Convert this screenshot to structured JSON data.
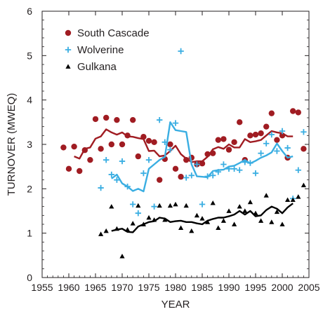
{
  "chart_data": {
    "type": "scatter",
    "xlabel": "YEAR",
    "ylabel": "TURNOVER (MWEQ)",
    "xlim": [
      1955,
      2005
    ],
    "ylim": [
      0,
      6
    ],
    "xticks": [
      "1955",
      "1960",
      "1965",
      "1970",
      "1975",
      "1980",
      "1985",
      "1990",
      "1995",
      "2000",
      "2005"
    ],
    "yticks": [
      "0",
      "1",
      "2",
      "3",
      "4",
      "5",
      "6"
    ],
    "legend_position": "top-left",
    "series": [
      {
        "name": "South Cascade",
        "color": "#a01c22",
        "marker": "circle",
        "points": [
          [
            1959,
            2.93
          ],
          [
            1960,
            2.45
          ],
          [
            1961,
            2.95
          ],
          [
            1962,
            2.4
          ],
          [
            1963,
            2.87
          ],
          [
            1964,
            2.65
          ],
          [
            1965,
            3.57
          ],
          [
            1966,
            2.9
          ],
          [
            1967,
            3.6
          ],
          [
            1968,
            3.0
          ],
          [
            1969,
            3.55
          ],
          [
            1970,
            3.0
          ],
          [
            1971,
            3.2
          ],
          [
            1972,
            3.55
          ],
          [
            1973,
            2.73
          ],
          [
            1974,
            3.17
          ],
          [
            1975,
            3.08
          ],
          [
            1976,
            3.05
          ],
          [
            1977,
            2.2
          ],
          [
            1978,
            2.67
          ],
          [
            1979,
            3.0
          ],
          [
            1980,
            2.45
          ],
          [
            1981,
            2.27
          ],
          [
            1982,
            2.65
          ],
          [
            1983,
            2.7
          ],
          [
            1984,
            2.55
          ],
          [
            1985,
            2.57
          ],
          [
            1986,
            2.78
          ],
          [
            1987,
            2.8
          ],
          [
            1988,
            3.1
          ],
          [
            1989,
            3.12
          ],
          [
            1990,
            2.88
          ],
          [
            1991,
            3.05
          ],
          [
            1992,
            3.5
          ],
          [
            1993,
            2.65
          ],
          [
            1994,
            3.2
          ],
          [
            1995,
            3.22
          ],
          [
            1996,
            3.25
          ],
          [
            1997,
            3.4
          ],
          [
            1998,
            3.7
          ],
          [
            1999,
            3.1
          ],
          [
            2000,
            3.2
          ],
          [
            2001,
            2.7
          ],
          [
            2002,
            3.75
          ],
          [
            2003,
            3.72
          ],
          [
            2004,
            2.9
          ]
        ],
        "trend": [
          [
            1961,
            2.73
          ],
          [
            1962,
            2.68
          ],
          [
            1963,
            2.9
          ],
          [
            1964,
            2.93
          ],
          [
            1965,
            3.13
          ],
          [
            1966,
            3.18
          ],
          [
            1967,
            3.34
          ],
          [
            1968,
            3.27
          ],
          [
            1969,
            3.22
          ],
          [
            1970,
            3.27
          ],
          [
            1971,
            3.18
          ],
          [
            1972,
            3.17
          ],
          [
            1973,
            3.14
          ],
          [
            1974,
            3.12
          ],
          [
            1975,
            2.85
          ],
          [
            1976,
            2.86
          ],
          [
            1977,
            2.73
          ],
          [
            1978,
            2.75
          ],
          [
            1979,
            2.85
          ],
          [
            1980,
            2.97
          ],
          [
            1981,
            2.78
          ],
          [
            1982,
            2.68
          ],
          [
            1983,
            2.6
          ],
          [
            1984,
            2.62
          ],
          [
            1985,
            2.62
          ],
          [
            1986,
            2.72
          ],
          [
            1987,
            2.89
          ],
          [
            1988,
            2.94
          ],
          [
            1989,
            2.9
          ],
          [
            1990,
            3.0
          ],
          [
            1991,
            2.93
          ],
          [
            1992,
            2.93
          ],
          [
            1993,
            3.12
          ],
          [
            1994,
            3.05
          ],
          [
            1995,
            3.07
          ],
          [
            1996,
            3.1
          ],
          [
            1997,
            3.2
          ],
          [
            1998,
            3.3
          ],
          [
            1999,
            3.27
          ],
          [
            2000,
            3.25
          ],
          [
            2001,
            3.18
          ],
          [
            2002,
            3.18
          ]
        ]
      },
      {
        "name": "Wolverine",
        "color": "#3aaee2",
        "marker": "plus",
        "points": [
          [
            1966,
            2.02
          ],
          [
            1967,
            2.65
          ],
          [
            1968,
            2.32
          ],
          [
            1969,
            2.2
          ],
          [
            1970,
            2.62
          ],
          [
            1971,
            2.05
          ],
          [
            1972,
            1.65
          ],
          [
            1973,
            1.45
          ],
          [
            1974,
            2.35
          ],
          [
            1975,
            2.65
          ],
          [
            1976,
            1.6
          ],
          [
            1977,
            3.55
          ],
          [
            1978,
            3.05
          ],
          [
            1979,
            2.88
          ],
          [
            1980,
            3.48
          ],
          [
            1981,
            5.1
          ],
          [
            1982,
            2.25
          ],
          [
            1983,
            2.3
          ],
          [
            1984,
            2.55
          ],
          [
            1985,
            1.65
          ],
          [
            1986,
            2.28
          ],
          [
            1987,
            2.3
          ],
          [
            1988,
            2.38
          ],
          [
            1989,
            2.55
          ],
          [
            1990,
            2.45
          ],
          [
            1991,
            2.45
          ],
          [
            1992,
            2.42
          ],
          [
            1993,
            2.6
          ],
          [
            1994,
            2.58
          ],
          [
            1995,
            2.35
          ],
          [
            1996,
            2.8
          ],
          [
            1997,
            3.02
          ],
          [
            1998,
            3.22
          ],
          [
            1999,
            2.85
          ],
          [
            2000,
            3.3
          ],
          [
            2001,
            2.92
          ],
          [
            2002,
            1.78
          ],
          [
            2003,
            2.42
          ],
          [
            2004,
            3.28
          ]
        ],
        "trend": [
          [
            1968,
            2.23
          ],
          [
            1969,
            2.32
          ],
          [
            1970,
            2.12
          ],
          [
            1971,
            2.05
          ],
          [
            1972,
            1.95
          ],
          [
            1973,
            2.0
          ],
          [
            1974,
            1.94
          ],
          [
            1975,
            2.45
          ],
          [
            1976,
            2.55
          ],
          [
            1977,
            2.65
          ],
          [
            1978,
            2.72
          ],
          [
            1979,
            3.5
          ],
          [
            1980,
            3.32
          ],
          [
            1981,
            3.3
          ],
          [
            1982,
            3.28
          ],
          [
            1983,
            2.55
          ],
          [
            1984,
            2.28
          ],
          [
            1985,
            2.27
          ],
          [
            1986,
            2.26
          ],
          [
            1987,
            2.4
          ],
          [
            1988,
            2.42
          ],
          [
            1989,
            2.43
          ],
          [
            1990,
            2.5
          ],
          [
            1991,
            2.52
          ],
          [
            1992,
            2.58
          ],
          [
            1993,
            2.65
          ],
          [
            1994,
            2.57
          ],
          [
            1995,
            2.63
          ],
          [
            1996,
            2.7
          ],
          [
            1997,
            2.75
          ],
          [
            1998,
            2.82
          ],
          [
            1999,
            3.02
          ],
          [
            2000,
            2.85
          ],
          [
            2001,
            2.7
          ],
          [
            2002,
            2.73
          ]
        ]
      },
      {
        "name": "Gulkana",
        "color": "#000000",
        "marker": "triangle",
        "points": [
          [
            1966,
            0.98
          ],
          [
            1967,
            1.05
          ],
          [
            1968,
            1.6
          ],
          [
            1969,
            1.1
          ],
          [
            1970,
            0.48
          ],
          [
            1971,
            1.08
          ],
          [
            1972,
            1.22
          ],
          [
            1973,
            1.62
          ],
          [
            1974,
            1.2
          ],
          [
            1975,
            1.35
          ],
          [
            1976,
            1.3
          ],
          [
            1977,
            1.62
          ],
          [
            1978,
            1.3
          ],
          [
            1979,
            1.62
          ],
          [
            1980,
            1.65
          ],
          [
            1981,
            1.12
          ],
          [
            1982,
            1.62
          ],
          [
            1983,
            1.05
          ],
          [
            1984,
            1.4
          ],
          [
            1985,
            1.33
          ],
          [
            1986,
            1.25
          ],
          [
            1987,
            1.68
          ],
          [
            1988,
            1.12
          ],
          [
            1989,
            1.28
          ],
          [
            1990,
            1.5
          ],
          [
            1991,
            1.2
          ],
          [
            1992,
            1.6
          ],
          [
            1993,
            1.5
          ],
          [
            1994,
            1.7
          ],
          [
            1995,
            1.45
          ],
          [
            1996,
            1.28
          ],
          [
            1997,
            1.85
          ],
          [
            1998,
            1.25
          ],
          [
            1999,
            1.48
          ],
          [
            2000,
            1.2
          ],
          [
            2001,
            1.75
          ],
          [
            2002,
            1.75
          ],
          [
            2003,
            1.82
          ],
          [
            2004,
            2.08
          ]
        ],
        "trend": [
          [
            1968,
            1.05
          ],
          [
            1969,
            1.08
          ],
          [
            1970,
            1.1
          ],
          [
            1971,
            1.03
          ],
          [
            1972,
            1.02
          ],
          [
            1973,
            1.15
          ],
          [
            1974,
            1.2
          ],
          [
            1975,
            1.25
          ],
          [
            1976,
            1.27
          ],
          [
            1977,
            1.35
          ],
          [
            1978,
            1.33
          ],
          [
            1979,
            1.25
          ],
          [
            1980,
            1.27
          ],
          [
            1981,
            1.28
          ],
          [
            1982,
            1.25
          ],
          [
            1983,
            1.25
          ],
          [
            1984,
            1.22
          ],
          [
            1985,
            1.2
          ],
          [
            1986,
            1.28
          ],
          [
            1987,
            1.32
          ],
          [
            1988,
            1.35
          ],
          [
            1989,
            1.35
          ],
          [
            1990,
            1.38
          ],
          [
            1991,
            1.42
          ],
          [
            1992,
            1.5
          ],
          [
            1993,
            1.42
          ],
          [
            1994,
            1.5
          ],
          [
            1995,
            1.38
          ],
          [
            1996,
            1.4
          ],
          [
            1997,
            1.52
          ],
          [
            1998,
            1.6
          ],
          [
            1999,
            1.55
          ],
          [
            2000,
            1.45
          ],
          [
            2001,
            1.58
          ],
          [
            2002,
            1.67
          ]
        ]
      }
    ]
  }
}
